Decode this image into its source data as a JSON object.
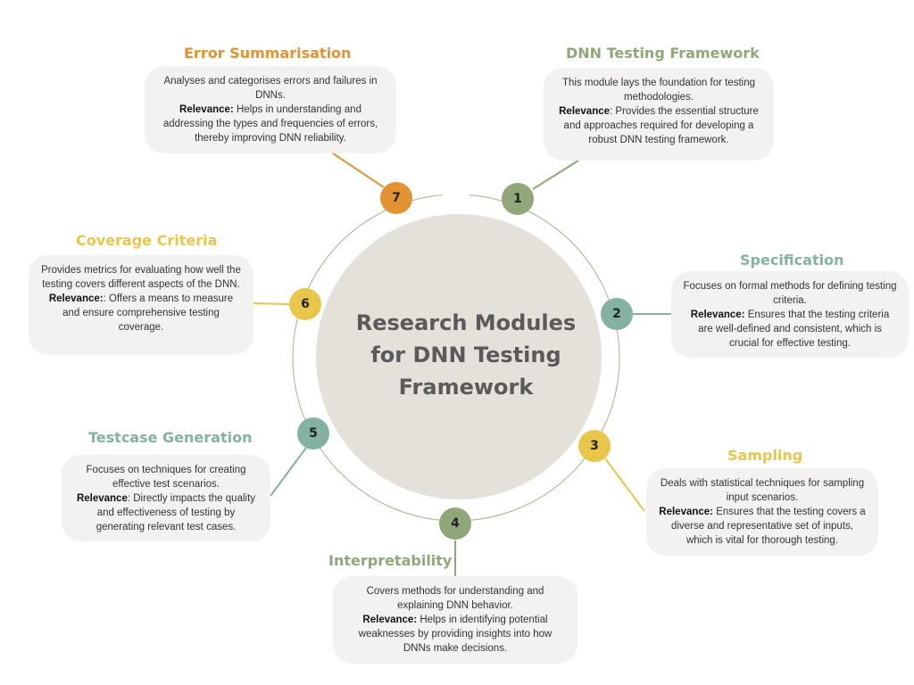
{
  "title_lines": [
    "Research Modules",
    "for DNN Testing",
    "Framework"
  ],
  "colors": {
    "sage": "#8fa779",
    "teal": "#84b1a2",
    "yellow": "#e7c64b",
    "orange": "#e39231",
    "center_fill": "#e4e0da",
    "ring": "#9fb58e"
  },
  "modules": [
    {
      "number": "1",
      "title": "DNN Testing Framework",
      "description": "This module lays the foundation for testing methodologies.",
      "relevance_label": "Relevance",
      "relevance_text": ": Provides the essential structure and approaches required for developing a robust DNN testing framework."
    },
    {
      "number": "2",
      "title": "Specification",
      "description": "Focuses on formal methods for defining testing criteria.",
      "relevance_label": "Relevance:",
      "relevance_text": " Ensures that the testing criteria are well-defined and consistent, which is crucial for effective testing."
    },
    {
      "number": "3",
      "title": "Sampling",
      "description": "Deals with statistical techniques for sampling input scenarios.",
      "relevance_label": "Relevance:",
      "relevance_text": " Ensures that the testing covers a diverse and representative set of inputs, which is vital for thorough testing."
    },
    {
      "number": "4",
      "title": "Interpretability",
      "description": "Covers methods for understanding and explaining DNN behavior.",
      "relevance_label": "Relevance:",
      "relevance_text": " Helps in identifying potential weaknesses by providing insights into how DNNs make decisions."
    },
    {
      "number": "5",
      "title": "Testcase Generation",
      "description": "Focuses on techniques for creating effective test scenarios.",
      "relevance_label": "Relevance",
      "relevance_text": ": Directly impacts the quality and effectiveness of testing by generating relevant test cases."
    },
    {
      "number": "6",
      "title": "Coverage Criteria",
      "description": "Provides metrics for evaluating how well the testing covers different aspects of the DNN.",
      "relevance_label": "Relevance:",
      "relevance_text": ": Offers a means to measure and ensure comprehensive testing coverage."
    },
    {
      "number": "7",
      "title": "Error Summarisation",
      "description": "Analyses and categorises errors and failures in DNNs.",
      "relevance_label": "Relevance:",
      "relevance_text": " Helps in understanding and addressing the types and frequencies of errors, thereby improving DNN reliability."
    }
  ]
}
